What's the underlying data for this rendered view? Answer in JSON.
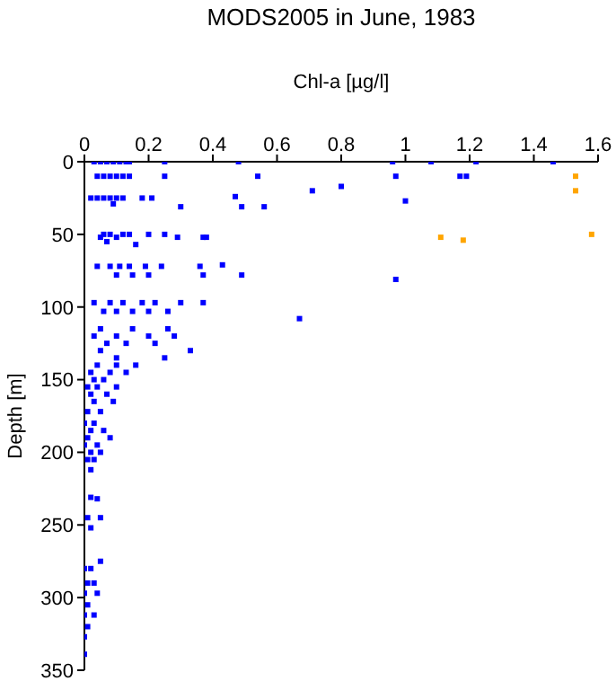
{
  "chart_data": {
    "type": "scatter",
    "title": "MODS2005 in June, 1983",
    "xlabel": "Chl-a [µg/l]",
    "ylabel": "Depth [m]",
    "xlim": [
      0,
      1.6
    ],
    "xticks": [
      0,
      0.2,
      0.4,
      0.6,
      0.8,
      1,
      1.2,
      1.4,
      1.6
    ],
    "ylim": [
      350,
      0
    ],
    "yticks": [
      0,
      50,
      100,
      150,
      200,
      250,
      300,
      350
    ],
    "grid": false,
    "legend": false,
    "marker": "square",
    "series": [
      {
        "color": "#0000ff",
        "x": [
          0.03,
          0.05,
          0.07,
          0.09,
          0.11,
          0.13,
          0.14,
          0.25,
          0.48,
          0.96,
          1.08,
          1.22,
          1.46,
          0.04,
          0.06,
          0.08,
          0.1,
          0.12,
          0.14,
          0.25,
          0.54,
          0.97,
          1.17,
          1.19,
          0.8,
          0.71,
          1.0,
          0.02,
          0.04,
          0.06,
          0.08,
          0.1,
          0.12,
          0.18,
          0.21,
          0.47,
          0.09,
          0.3,
          0.49,
          0.56,
          0.06,
          0.08,
          0.12,
          0.14,
          0.2,
          0.25,
          0.05,
          0.1,
          0.29,
          0.37,
          0.38,
          0.07,
          0.16,
          0.04,
          0.08,
          0.11,
          0.14,
          0.19,
          0.24,
          0.36,
          0.43,
          0.1,
          0.15,
          0.2,
          0.37,
          0.49,
          0.97,
          0.03,
          0.08,
          0.12,
          0.18,
          0.22,
          0.3,
          0.37,
          0.06,
          0.1,
          0.15,
          0.2,
          0.26,
          0.67,
          0.05,
          0.15,
          0.26,
          0.03,
          0.1,
          0.2,
          0.28,
          0.07,
          0.13,
          0.22,
          0.33,
          0.05,
          0.25,
          0.1,
          0.04,
          0.1,
          0.16,
          0.02,
          0.08,
          0.13,
          0.03,
          0.06,
          0.01,
          0.04,
          0.1,
          0.02,
          0.07,
          0.03,
          0.09,
          0.01,
          0.05,
          0.0,
          0.03,
          0.02,
          0.06,
          0.01,
          0.08,
          0.0,
          0.04,
          0.02,
          0.05,
          0.01,
          0.03,
          0.02,
          0.04,
          0.02,
          0.01,
          0.05,
          0.02,
          0.05,
          0.0,
          0.02,
          0.01,
          0.03,
          0.0,
          0.04,
          0.01,
          0.0,
          0.03,
          0.01,
          0.0,
          0.0
        ],
        "values": [
          0,
          0,
          0,
          0,
          0,
          0,
          0,
          0,
          0,
          0,
          0,
          0,
          0,
          10,
          10,
          10,
          10,
          10,
          10,
          10,
          10,
          10,
          10,
          10,
          17,
          20,
          27,
          25,
          25,
          25,
          25,
          25,
          25,
          25,
          25,
          24,
          29,
          31,
          31,
          31,
          50,
          50,
          50,
          50,
          50,
          50,
          52,
          52,
          52,
          52,
          52,
          55,
          57,
          72,
          72,
          72,
          72,
          72,
          72,
          72,
          71,
          78,
          78,
          78,
          78,
          78,
          81,
          97,
          97,
          97,
          97,
          97,
          97,
          97,
          103,
          103,
          103,
          103,
          103,
          108,
          115,
          115,
          115,
          120,
          120,
          120,
          120,
          125,
          125,
          125,
          130,
          130,
          135,
          135,
          140,
          140,
          140,
          145,
          145,
          145,
          150,
          150,
          155,
          155,
          155,
          160,
          160,
          165,
          165,
          172,
          172,
          180,
          180,
          185,
          185,
          190,
          190,
          195,
          195,
          200,
          200,
          205,
          205,
          212,
          232,
          231,
          245,
          245,
          252,
          275,
          280,
          280,
          290,
          290,
          297,
          297,
          305,
          312,
          312,
          320,
          327,
          339
        ]
      },
      {
        "color": "#ffa500",
        "x": [
          1.53,
          1.53,
          1.11,
          1.18,
          1.58
        ],
        "values": [
          10,
          20,
          52,
          54,
          50
        ]
      }
    ]
  }
}
